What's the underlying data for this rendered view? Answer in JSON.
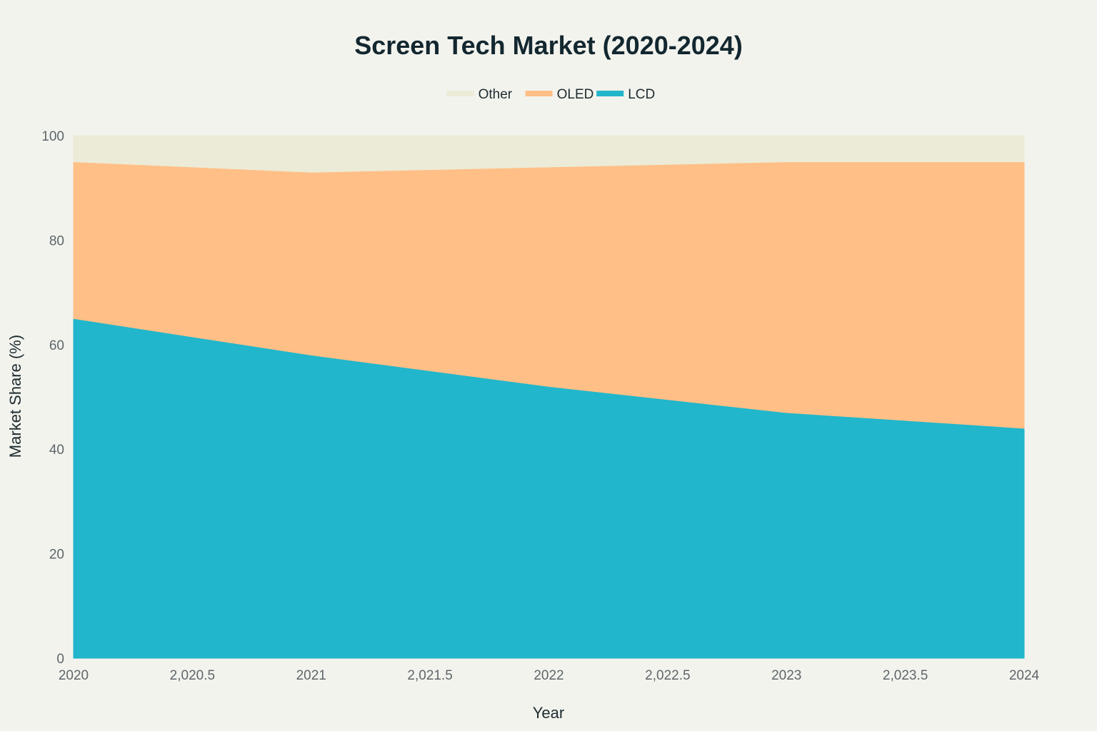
{
  "chart_data": {
    "type": "area",
    "stacked": true,
    "title": "Screen Tech Market (2020-2024)",
    "xlabel": "Year",
    "ylabel": "Market Share (%)",
    "x": [
      2020,
      2021,
      2022,
      2023,
      2024
    ],
    "xlim": [
      2020,
      2024
    ],
    "ylim": [
      0,
      100
    ],
    "x_ticks": [
      "2020",
      "2,020.5",
      "2021",
      "2,021.5",
      "2022",
      "2,022.5",
      "2023",
      "2,023.5",
      "2024"
    ],
    "x_tick_values": [
      2020,
      2020.5,
      2021,
      2021.5,
      2022,
      2022.5,
      2023,
      2023.5,
      2024
    ],
    "y_ticks": [
      "0",
      "20",
      "40",
      "60",
      "80",
      "100"
    ],
    "y_tick_values": [
      0,
      20,
      40,
      60,
      80,
      100
    ],
    "series": [
      {
        "name": "LCD",
        "values": [
          65,
          58,
          52,
          47,
          44
        ],
        "color": "#21b6cb"
      },
      {
        "name": "OLED",
        "values": [
          30,
          35,
          42,
          48,
          51
        ],
        "color": "#ffbf86"
      },
      {
        "name": "Other",
        "values": [
          5,
          7,
          6,
          5,
          5
        ],
        "color": "#ecebd7"
      }
    ],
    "legend": {
      "position": "top-center",
      "entries": [
        "Other",
        "OLED",
        "LCD"
      ]
    },
    "grid": false
  }
}
